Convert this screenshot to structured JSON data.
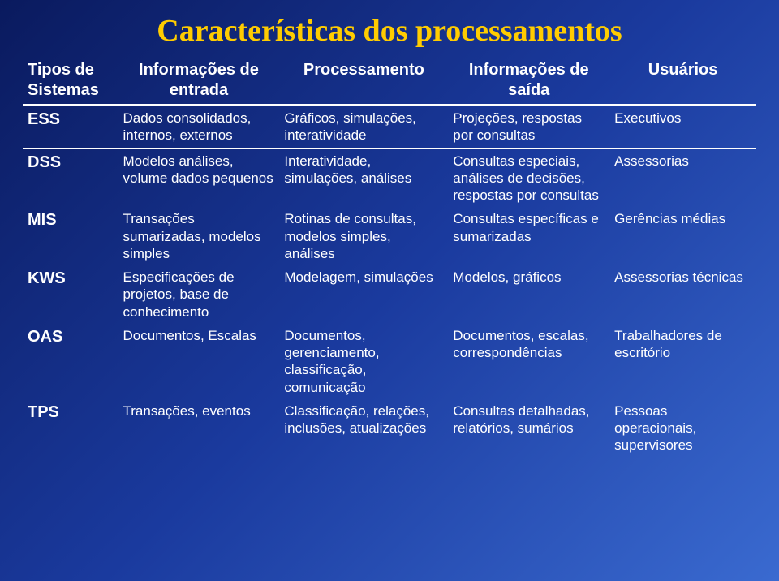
{
  "title": "Características dos processamentos",
  "colors": {
    "titleColor": "#ffcc00",
    "textColor": "#ffffff",
    "ruleColor": "#ffffff",
    "bgGradient": [
      "#0a1a5e",
      "#1a3a9e",
      "#3a6ad0"
    ]
  },
  "typography": {
    "titleFontFamily": "Times New Roman",
    "titleFontSize": 38,
    "headerFontSize": 20,
    "bodyFontSize": 17
  },
  "columns": [
    "Tipos de Sistemas",
    "Informações de entrada",
    "Processamento",
    "Informações de saída",
    "Usuários"
  ],
  "columnWidthsPct": [
    13,
    22,
    23,
    22,
    20
  ],
  "rows": [
    {
      "label": "ESS",
      "separatorAbove": true,
      "cells": [
        "Dados consolidados, internos, externos",
        "Gráficos, simulações, interatividade",
        "Projeções, respostas por consultas",
        "Executivos"
      ]
    },
    {
      "label": "DSS",
      "separatorAbove": true,
      "cells": [
        "Modelos análises, volume dados pequenos",
        "Interatividade, simulações, análises",
        "Consultas especiais, análises de decisões, respostas por consultas",
        "Assessorias"
      ]
    },
    {
      "label": "MIS",
      "separatorAbove": false,
      "cells": [
        "Transações sumarizadas, modelos simples",
        "Rotinas de consultas, modelos simples, análises",
        "Consultas específicas e sumarizadas",
        "Gerências médias"
      ]
    },
    {
      "label": "KWS",
      "separatorAbove": false,
      "cells": [
        "Especificações de projetos, base de conhecimento",
        "Modelagem, simulações",
        "Modelos, gráficos",
        "Assessorias técnicas"
      ]
    },
    {
      "label": "OAS",
      "separatorAbove": false,
      "cells": [
        "Documentos, Escalas",
        "Documentos, gerenciamento, classificação, comunicação",
        "Documentos, escalas, correspondências",
        "Trabalhadores de escritório"
      ]
    },
    {
      "label": "TPS",
      "separatorAbove": false,
      "cells": [
        "Transações, eventos",
        "Classificação, relações, inclusões, atualizações",
        "Consultas detalhadas, relatórios, sumários",
        "Pessoas operacionais, supervisores"
      ]
    }
  ]
}
